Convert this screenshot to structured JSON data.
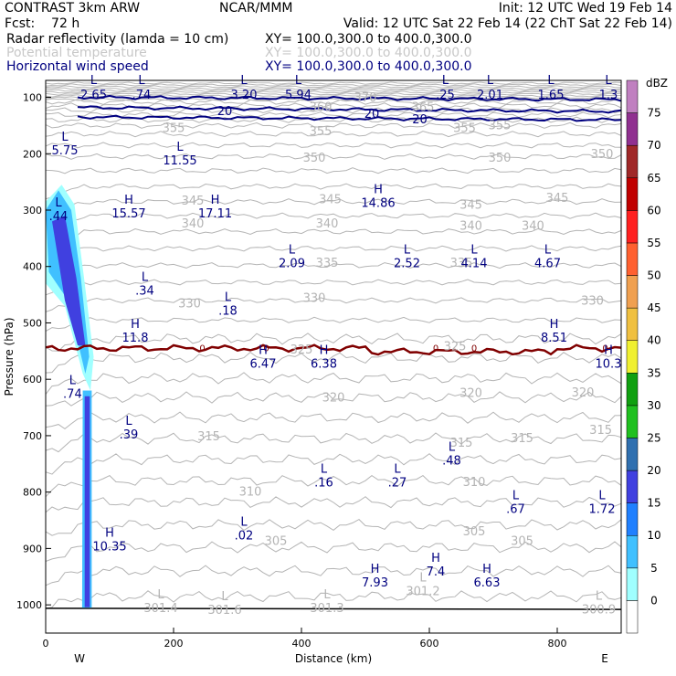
{
  "header": {
    "line1_left": "CONTRAST   3km ARW",
    "line1_mid": "NCAR/MMM",
    "line1_right": "Init: 12 UTC Wed 19 Feb 14",
    "line2_left": "Fcst:    72 h",
    "line2_right": "Valid: 12 UTC Sat 22 Feb 14 (22 ChT Sat 22 Feb 14)",
    "fields": [
      {
        "name": "Radar reflectivity (lamda = 10 cm)",
        "xy": "XY= 100.0,300.0 to 400.0,300.0",
        "color": "#000000"
      },
      {
        "name": "Potential temperature",
        "xy": "XY= 100.0,300.0 to 400.0,300.0",
        "color": "#c8c8c8"
      },
      {
        "name": "Horizontal wind speed",
        "xy": "XY= 100.0,300.0 to 400.0,300.0",
        "color": "#000080"
      }
    ]
  },
  "chart_data": {
    "type": "cross-section",
    "xlabel": "Distance (km)",
    "ylabel": "Pressure (hPa)",
    "xlim": [
      0,
      900
    ],
    "ylim": [
      1050,
      70
    ],
    "x_ticks": [
      0,
      200,
      400,
      600,
      800
    ],
    "x_tick_labels": [
      "0",
      "200",
      "400",
      "600",
      "800"
    ],
    "y_ticks": [
      100,
      200,
      300,
      400,
      500,
      600,
      700,
      800,
      900,
      1000
    ],
    "y_tick_labels": [
      "100",
      "200",
      "300",
      "400",
      "500",
      "600",
      "700",
      "800",
      "900",
      "1000"
    ],
    "end_labels": {
      "left": "W",
      "right": "E"
    },
    "colorbar": {
      "unit": "dBZ",
      "levels": [
        "0",
        "5",
        "10",
        "15",
        "20",
        "25",
        "30",
        "35",
        "40",
        "45",
        "50",
        "55",
        "60",
        "65",
        "70",
        "75"
      ],
      "colors": [
        "#ffffff",
        "#a0ffff",
        "#40c0ff",
        "#2080ff",
        "#4040e0",
        "#3070b0",
        "#20c020",
        "#10a010",
        "#f0f030",
        "#f0c040",
        "#f0a050",
        "#ff6030",
        "#ff2020",
        "#c00000",
        "#a02828",
        "#903090",
        "#c080c0"
      ]
    },
    "theta_contour_labels": [
      {
        "label": "370",
        "x": 500,
        "p": 101
      },
      {
        "label": "360",
        "x": 430,
        "p": 118
      },
      {
        "label": "365",
        "x": 590,
        "p": 118
      },
      {
        "label": "355",
        "x": 200,
        "p": 155
      },
      {
        "label": "355",
        "x": 430,
        "p": 161
      },
      {
        "label": "355",
        "x": 655,
        "p": 155
      },
      {
        "label": "355",
        "x": 710,
        "p": 150
      },
      {
        "label": "350",
        "x": 420,
        "p": 208
      },
      {
        "label": "350",
        "x": 710,
        "p": 208
      },
      {
        "label": "350",
        "x": 870,
        "p": 201
      },
      {
        "label": "345",
        "x": 230,
        "p": 284
      },
      {
        "label": "345",
        "x": 445,
        "p": 281
      },
      {
        "label": "345",
        "x": 665,
        "p": 291
      },
      {
        "label": "345",
        "x": 800,
        "p": 279
      },
      {
        "label": "340",
        "x": 230,
        "p": 324
      },
      {
        "label": "340",
        "x": 440,
        "p": 324
      },
      {
        "label": "340",
        "x": 665,
        "p": 328
      },
      {
        "label": "340",
        "x": 762,
        "p": 328
      },
      {
        "label": "335",
        "x": 440,
        "p": 394
      },
      {
        "label": "335",
        "x": 650,
        "p": 394
      },
      {
        "label": "330",
        "x": 225,
        "p": 466
      },
      {
        "label": "330",
        "x": 420,
        "p": 456
      },
      {
        "label": "330",
        "x": 855,
        "p": 461
      },
      {
        "label": "325",
        "x": 400,
        "p": 548
      },
      {
        "label": "325",
        "x": 640,
        "p": 542
      },
      {
        "label": "320",
        "x": 450,
        "p": 633
      },
      {
        "label": "320",
        "x": 665,
        "p": 625
      },
      {
        "label": "320",
        "x": 840,
        "p": 624
      },
      {
        "label": "315",
        "x": 255,
        "p": 702
      },
      {
        "label": "315",
        "x": 650,
        "p": 713
      },
      {
        "label": "315",
        "x": 745,
        "p": 705
      },
      {
        "label": "315",
        "x": 868,
        "p": 690
      },
      {
        "label": "310",
        "x": 320,
        "p": 800
      },
      {
        "label": "310",
        "x": 670,
        "p": 783
      },
      {
        "label": "305",
        "x": 360,
        "p": 887
      },
      {
        "label": "305",
        "x": 670,
        "p": 870
      },
      {
        "label": "305",
        "x": 745,
        "p": 887
      }
    ],
    "theta_extrema": [
      {
        "type": "L",
        "value": "5.75",
        "x": 30,
        "p": 193
      },
      {
        "type": "L",
        "value": "11.55",
        "x": 210,
        "p": 211
      },
      {
        "type": "H",
        "value": "15.57",
        "x": 130,
        "p": 305
      },
      {
        "type": "H",
        "value": "17.11",
        "x": 265,
        "p": 305
      },
      {
        "type": "H",
        "value": "14.86",
        "x": 520,
        "p": 286
      },
      {
        "type": "L",
        "value": ".44",
        "x": 20,
        "p": 310
      },
      {
        "type": "L",
        "value": "2.09",
        "x": 385,
        "p": 393
      },
      {
        "type": "L",
        "value": "2.52",
        "x": 565,
        "p": 393
      },
      {
        "type": "L",
        "value": "4.14",
        "x": 670,
        "p": 393
      },
      {
        "type": "L",
        "value": "4.67",
        "x": 785,
        "p": 393
      },
      {
        "type": "L",
        "value": ".34",
        "x": 155,
        "p": 442
      },
      {
        "type": "L",
        "value": ".18",
        "x": 285,
        "p": 477
      },
      {
        "type": "H",
        "value": "11.8",
        "x": 140,
        "p": 525
      },
      {
        "type": "H",
        "value": "8.51",
        "x": 795,
        "p": 525
      },
      {
        "type": "H",
        "value": "6.47",
        "x": 340,
        "p": 571
      },
      {
        "type": "H",
        "value": "6.38",
        "x": 435,
        "p": 571
      },
      {
        "type": "H",
        "value": "10.3",
        "x": 880,
        "p": 571
      },
      {
        "type": "L",
        "value": ".74",
        "x": 42,
        "p": 625
      },
      {
        "type": "L",
        "value": ".39",
        "x": 130,
        "p": 697
      },
      {
        "type": "L",
        "value": ".48",
        "x": 635,
        "p": 743
      },
      {
        "type": "L",
        "value": ".16",
        "x": 435,
        "p": 782
      },
      {
        "type": "L",
        "value": ".27",
        "x": 550,
        "p": 782
      },
      {
        "type": "L",
        "value": ".67",
        "x": 735,
        "p": 829
      },
      {
        "type": "L",
        "value": "1.72",
        "x": 870,
        "p": 829
      },
      {
        "type": "L",
        "value": ".02",
        "x": 310,
        "p": 876
      },
      {
        "type": "H",
        "value": "10.35",
        "x": 100,
        "p": 895
      },
      {
        "type": "H",
        "value": "7.4",
        "x": 610,
        "p": 940
      },
      {
        "type": "H",
        "value": "7.93",
        "x": 515,
        "p": 959
      },
      {
        "type": "H",
        "value": "6.63",
        "x": 690,
        "p": 959
      },
      {
        "type": "L",
        "value": "301.4",
        "x": 180,
        "p": 1005
      },
      {
        "type": "L",
        "value": "301.6",
        "x": 280,
        "p": 1008
      },
      {
        "type": "L",
        "value": "301.3",
        "x": 440,
        "p": 1005
      },
      {
        "type": "L",
        "value": "301.2",
        "x": 590,
        "p": 975
      },
      {
        "type": "L",
        "value": "300.9",
        "x": 865,
        "p": 1007
      }
    ],
    "top_extrema": [
      {
        "type": "L",
        "value": "2.65",
        "x": 75
      },
      {
        "type": "L",
        "value": ".74",
        "x": 150
      },
      {
        "type": "L",
        "value": "3.20",
        "x": 310
      },
      {
        "type": "L",
        "value": "5.94",
        "x": 395
      },
      {
        "type": "L",
        "value": ".25",
        "x": 625
      },
      {
        "type": "L",
        "value": "2.01",
        "x": 695
      },
      {
        "type": "L",
        "value": "1.65",
        "x": 790
      },
      {
        "type": "L",
        "value": "1.3",
        "x": 880
      }
    ],
    "wind_contours": [
      {
        "value": "20",
        "label_x": [
          280,
          510,
          585
        ]
      }
    ],
    "zero_line_labels": [
      "0",
      "0",
      "0",
      "0",
      "0"
    ],
    "zero_line_label_x": [
      245,
      345,
      610,
      670,
      875
    ],
    "reflectivity_max_dbz": 20
  }
}
